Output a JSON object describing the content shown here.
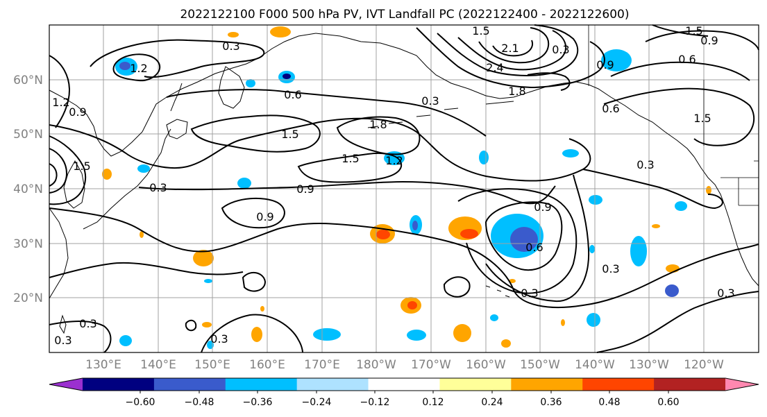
{
  "title": "2022122100 F000 500 hPa PV, IVT Landfall PC (2022122400 - 2022122600)",
  "map": {
    "lat_labels": [
      "60°N",
      "50°N",
      "40°N",
      "30°N",
      "20°N"
    ],
    "lon_labels": [
      "130°E",
      "140°E",
      "150°E",
      "160°E",
      "170°E",
      "180°W",
      "170°W",
      "160°W",
      "150°W",
      "140°W",
      "130°W",
      "120°W"
    ],
    "contour_labels": [
      "0.3",
      "1.2",
      "0.6",
      "0.3",
      "1.5",
      "2.1",
      "2.4",
      "1.8",
      "0.3",
      "0.9",
      "0.6",
      "1.5",
      "1.5",
      "0.6",
      "0.9",
      "1.2",
      "0.9",
      "1.5",
      "1.8",
      "1.5",
      "1.5",
      "0.3",
      "0.9",
      "1.2",
      "0.3",
      "0.9",
      "0.9",
      "0.3",
      "0.3",
      "0.6",
      "0.3",
      "0.3",
      "0.3",
      "0.3"
    ],
    "land_color": "#000000",
    "grid": true
  },
  "colorbar": {
    "tick_labels": [
      "−0.60",
      "−0.48",
      "−0.36",
      "−0.24",
      "−0.12",
      "0.12",
      "0.24",
      "0.36",
      "0.48",
      "0.60"
    ],
    "colors": [
      "#9b30d0",
      "#000080",
      "#3a5bcc",
      "#00bfff",
      "#aee2ff",
      "#ffffff",
      "#ffff99",
      "#ffa500",
      "#ff4500",
      "#b22222",
      "#ff88b0"
    ]
  }
}
